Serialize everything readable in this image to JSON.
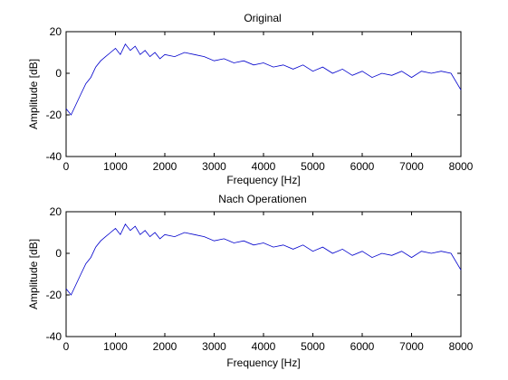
{
  "chart_data": [
    {
      "type": "line",
      "title": "Original",
      "xlabel": "Frequency [Hz]",
      "ylabel": "Amplitude [dB]",
      "xlim": [
        0,
        8000
      ],
      "ylim": [
        -40,
        20
      ],
      "xticks": [
        0,
        1000,
        2000,
        3000,
        4000,
        5000,
        6000,
        7000,
        8000
      ],
      "yticks": [
        -40,
        -20,
        0,
        20
      ],
      "grid": false,
      "color": "#0000cc",
      "series": [
        {
          "x": [
            0,
            100,
            200,
            300,
            400,
            500,
            600,
            700,
            800,
            900,
            1000,
            1100,
            1200,
            1300,
            1400,
            1500,
            1600,
            1700,
            1800,
            1900,
            2000,
            2200,
            2400,
            2600,
            2800,
            3000,
            3200,
            3400,
            3600,
            3800,
            4000,
            4200,
            4400,
            4600,
            4800,
            5000,
            5200,
            5400,
            5600,
            5800,
            6000,
            6200,
            6400,
            6600,
            6800,
            7000,
            7200,
            7400,
            7600,
            7800,
            8000
          ],
          "y": [
            -17,
            -20,
            -15,
            -10,
            -5,
            -2,
            3,
            6,
            8,
            10,
            12,
            9,
            14,
            11,
            13,
            9,
            11,
            8,
            10,
            7,
            9,
            8,
            10,
            9,
            8,
            6,
            7,
            5,
            6,
            4,
            5,
            3,
            4,
            2,
            4,
            1,
            3,
            0,
            2,
            -1,
            1,
            -2,
            0,
            -1,
            1,
            -2,
            1,
            0,
            1,
            0,
            -8
          ]
        }
      ]
    },
    {
      "type": "line",
      "title": "Nach Operationen",
      "xlabel": "Frequency [Hz]",
      "ylabel": "Amplitude [dB]",
      "xlim": [
        0,
        8000
      ],
      "ylim": [
        -40,
        20
      ],
      "xticks": [
        0,
        1000,
        2000,
        3000,
        4000,
        5000,
        6000,
        7000,
        8000
      ],
      "yticks": [
        -40,
        -20,
        0,
        20
      ],
      "grid": false,
      "color": "#0000cc",
      "series": [
        {
          "x": [
            0,
            100,
            200,
            300,
            400,
            500,
            600,
            700,
            800,
            900,
            1000,
            1100,
            1200,
            1300,
            1400,
            1500,
            1600,
            1700,
            1800,
            1900,
            2000,
            2200,
            2400,
            2600,
            2800,
            3000,
            3200,
            3400,
            3600,
            3800,
            4000,
            4200,
            4400,
            4600,
            4800,
            5000,
            5200,
            5400,
            5600,
            5800,
            6000,
            6200,
            6400,
            6600,
            6800,
            7000,
            7200,
            7400,
            7600,
            7800,
            8000
          ],
          "y": [
            -17,
            -20,
            -15,
            -10,
            -5,
            -2,
            3,
            6,
            8,
            10,
            12,
            9,
            14,
            11,
            13,
            9,
            11,
            8,
            10,
            7,
            9,
            8,
            10,
            9,
            8,
            6,
            7,
            5,
            6,
            4,
            5,
            3,
            4,
            2,
            4,
            1,
            3,
            0,
            2,
            -1,
            1,
            -2,
            0,
            -1,
            1,
            -2,
            1,
            0,
            1,
            0,
            -8
          ]
        }
      ]
    }
  ]
}
